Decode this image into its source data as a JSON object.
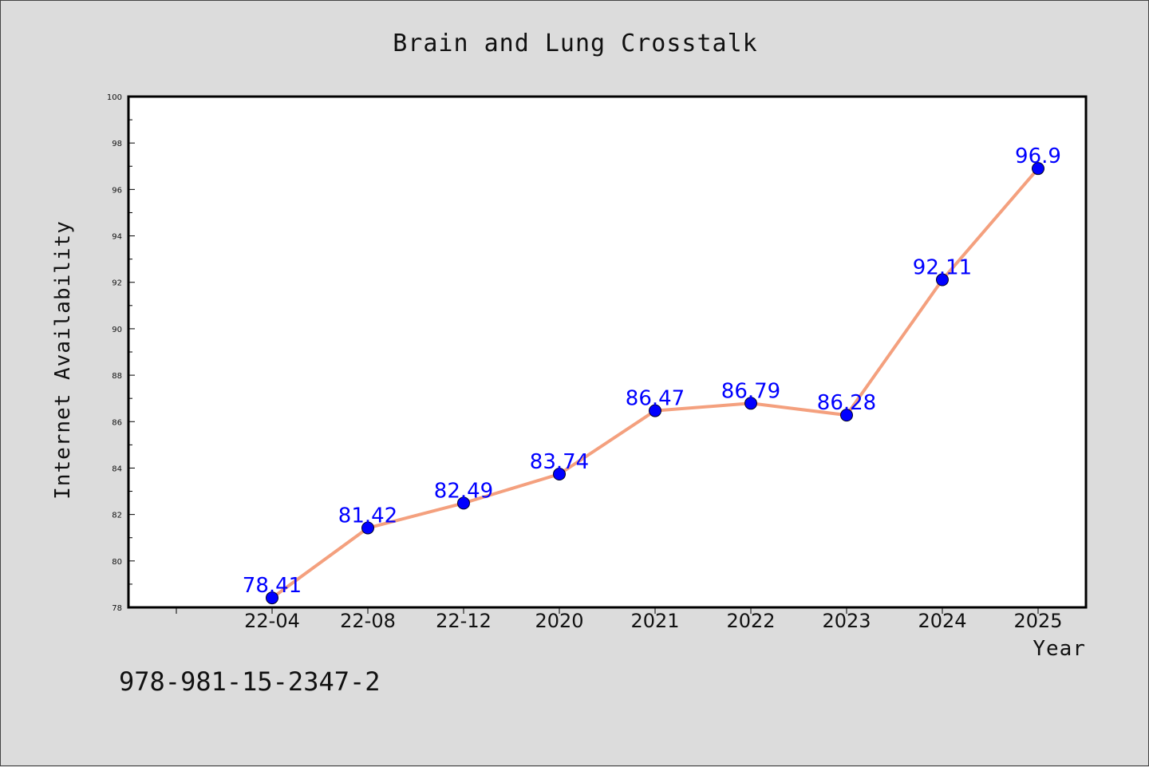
{
  "chart_data": {
    "type": "line",
    "title": "Brain and Lung Crosstalk",
    "xlabel": "Year",
    "ylabel": "Internet Availability",
    "categories": [
      "22-04",
      "22-08",
      "22-12",
      "2020",
      "2021",
      "2022",
      "2023",
      "2024",
      "2025"
    ],
    "series": [
      {
        "values": [
          78.41,
          81.42,
          82.49,
          83.74,
          86.47,
          86.79,
          86.28,
          92.11,
          96.9
        ]
      }
    ],
    "data_labels": [
      "78.41",
      "81.42",
      "82.49",
      "83.74",
      "86.47",
      "86.79",
      "86.28",
      "92.11",
      "96.9"
    ],
    "ylim": [
      78,
      100
    ],
    "yticks": [
      "78",
      "80",
      "82",
      "84",
      "86",
      "88",
      "90",
      "92",
      "94",
      "96",
      "98",
      "100"
    ],
    "grid": false,
    "legend": "none",
    "line_color": "#f4a07e",
    "marker_color": "#0000ff",
    "label_color": "#0000ff"
  },
  "footnote": "978-981-15-2347-2"
}
